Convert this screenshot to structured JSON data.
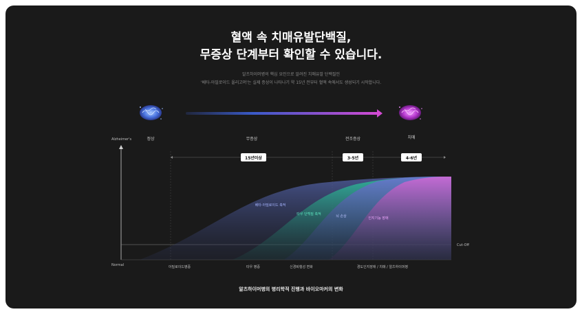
{
  "heading": {
    "line1": "혈액 속 치매유발단백질,",
    "line2": "무증상 단계부터 확인할 수 있습니다."
  },
  "description": {
    "line1": "알츠하이머병의 핵심 요인으로 알려진  치매유발 단백질인",
    "line2": "'베타-아밀로이드 올리고머'는 실제 증상이 나타나기 약 15년 전부터 혈액 속에서도 생성되기 시작합니다."
  },
  "icons": {
    "left": "brain-icon-blue",
    "right": "brain-icon-purple",
    "arrow": "progression-arrow"
  },
  "axis": {
    "y_top": "Alzheimer's",
    "y_bottom": "Normal",
    "cutoff": "Cut-Off"
  },
  "stages": {
    "normal": "정상",
    "asymptomatic": "무증상",
    "prodromal": "전조증상",
    "dementia": "치매"
  },
  "durations": {
    "asymptomatic": "15년이상",
    "prodromal": "3-5년",
    "dementia": "4-6년"
  },
  "curves": {
    "amyloid": "베타-아밀로이드 축적",
    "tau": "타우 단백질 축적",
    "brain": "뇌 손상",
    "cognitive": "인지기능 장애"
  },
  "milestones": {
    "m1": "아밀로이드병증",
    "m2": "타우 병증",
    "m3": "신경퇴행성 변화",
    "m4": "경도인지장애 / 치매 / 알츠하이머병"
  },
  "caption": "알츠하이머병의 병리학적 진행과 바이오마커의 변화",
  "colors": {
    "background": "#1a1a1a",
    "amyloid": "#4a5a9a",
    "tau": "#2fb89a",
    "brain": "#6b74d0",
    "cognitive": "#c86ad4",
    "arrow_start": "#3a5ac8",
    "arrow_end": "#d24ad2"
  }
}
